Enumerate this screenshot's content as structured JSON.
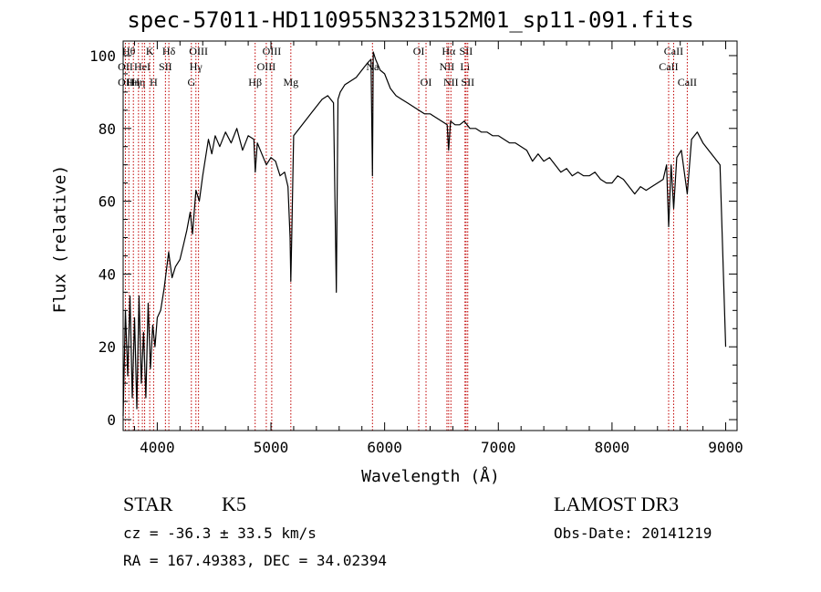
{
  "title": "spec-57011-HD110955N323152M01_sp11-091.fits",
  "info": {
    "object_class": "STAR",
    "subclass": "K5",
    "survey": "LAMOST DR3",
    "cz": "cz = -36.3 ± 33.5 km/s",
    "obs_date": "Obs-Date: 20141219",
    "coords": "RA = 167.49383, DEC =  34.02394"
  },
  "chart_data": {
    "type": "line",
    "xlabel": "Wavelength (Å)",
    "ylabel": "Flux (relative)",
    "xlim": [
      3700,
      9100
    ],
    "ylim": [
      -3,
      104
    ],
    "xticks": [
      4000,
      5000,
      6000,
      7000,
      8000,
      9000
    ],
    "yticks": [
      0,
      20,
      40,
      60,
      80,
      100
    ],
    "grid": false,
    "series": [
      {
        "x": [
          3700,
          3720,
          3740,
          3760,
          3780,
          3800,
          3820,
          3840,
          3860,
          3880,
          3900,
          3920,
          3940,
          3960,
          3980,
          4000,
          4030,
          4060,
          4080,
          4100,
          4130,
          4160,
          4200,
          4230,
          4260,
          4290,
          4310,
          4340,
          4370,
          4400,
          4420,
          4450,
          4480,
          4510,
          4550,
          4600,
          4650,
          4700,
          4750,
          4800,
          4850,
          4862,
          4880,
          4920,
          4960,
          5000,
          5040,
          5080,
          5120,
          5150,
          5168,
          5175,
          5183,
          5200,
          5250,
          5300,
          5350,
          5400,
          5450,
          5500,
          5550,
          5575,
          5590,
          5610,
          5650,
          5700,
          5750,
          5800,
          5850,
          5880,
          5893,
          5900,
          5920,
          5960,
          6000,
          6050,
          6100,
          6150,
          6200,
          6250,
          6300,
          6350,
          6400,
          6450,
          6500,
          6550,
          6563,
          6580,
          6620,
          6660,
          6700,
          6750,
          6800,
          6850,
          6900,
          6950,
          7000,
          7050,
          7100,
          7150,
          7200,
          7250,
          7300,
          7350,
          7400,
          7450,
          7500,
          7550,
          7600,
          7650,
          7700,
          7750,
          7800,
          7850,
          7900,
          7950,
          8000,
          8050,
          8100,
          8150,
          8200,
          8250,
          8300,
          8350,
          8400,
          8450,
          8480,
          8498,
          8520,
          8542,
          8570,
          8610,
          8662,
          8700,
          8750,
          8800,
          8850,
          8900,
          8950,
          9000
        ],
        "y": [
          1,
          30,
          12,
          34,
          6,
          28,
          3,
          34,
          10,
          24,
          6,
          32,
          14,
          26,
          20,
          28,
          30,
          36,
          41,
          46,
          39,
          42,
          44,
          48,
          52,
          57,
          51,
          63,
          60,
          67,
          71,
          77,
          73,
          78,
          75,
          79,
          76,
          80,
          74,
          78,
          77,
          68,
          76,
          73,
          70,
          72,
          71,
          67,
          68,
          64,
          50,
          38,
          50,
          78,
          80,
          82,
          84,
          86,
          88,
          89,
          87,
          35,
          88,
          90,
          92,
          93,
          94,
          96,
          98,
          99,
          67,
          101,
          99,
          96,
          95,
          91,
          89,
          88,
          87,
          86,
          85,
          84,
          84,
          83,
          82,
          81,
          74,
          82,
          81,
          81,
          82,
          80,
          80,
          79,
          79,
          78,
          78,
          77,
          76,
          76,
          75,
          74,
          71,
          73,
          71,
          72,
          70,
          68,
          69,
          67,
          68,
          67,
          67,
          68,
          66,
          65,
          65,
          67,
          66,
          64,
          62,
          64,
          63,
          64,
          65,
          66,
          70,
          53,
          70,
          58,
          72,
          74,
          62,
          77,
          79,
          76,
          74,
          72,
          70,
          20
        ]
      }
    ],
    "lines": [
      {
        "x": 3720,
        "labels": [
          "OII",
          "OII"
        ],
        "row": 1
      },
      {
        "x": 3750,
        "labels": [
          "Hθ"
        ],
        "row": 0
      },
      {
        "x": 3790,
        "labels": [
          "Hη"
        ],
        "row": 2
      },
      {
        "x": 3835,
        "labels": [
          "Hη"
        ],
        "row": 2
      },
      {
        "x": 3869,
        "labels": [
          "HeI"
        ],
        "row": 1
      },
      {
        "x": 3889,
        "labels": [],
        "row": 0
      },
      {
        "x": 3934,
        "labels": [
          "K"
        ],
        "row": 0
      },
      {
        "x": 3968,
        "labels": [
          "H"
        ],
        "row": 2
      },
      {
        "x": 4072,
        "labels": [
          "SII"
        ],
        "row": 1
      },
      {
        "x": 4102,
        "labels": [
          "Hδ"
        ],
        "row": 0
      },
      {
        "x": 4300,
        "labels": [
          "G"
        ],
        "row": 2
      },
      {
        "x": 4340,
        "labels": [
          "Hγ"
        ],
        "row": 1
      },
      {
        "x": 4363,
        "labels": [
          "OIII"
        ],
        "row": 0
      },
      {
        "x": 4861,
        "labels": [
          "Hβ"
        ],
        "row": 2
      },
      {
        "x": 4959,
        "labels": [
          "OIII"
        ],
        "row": 1
      },
      {
        "x": 5007,
        "labels": [
          "OIII"
        ],
        "row": 0
      },
      {
        "x": 5175,
        "labels": [
          "Mg"
        ],
        "row": 2
      },
      {
        "x": 5893,
        "labels": [
          "Na"
        ],
        "row": 1
      },
      {
        "x": 6300,
        "labels": [
          "OI"
        ],
        "row": 0
      },
      {
        "x": 6364,
        "labels": [
          "OI"
        ],
        "row": 2
      },
      {
        "x": 6548,
        "labels": [
          "NII"
        ],
        "row": 1
      },
      {
        "x": 6563,
        "labels": [
          "Hα"
        ],
        "row": 0
      },
      {
        "x": 6583,
        "labels": [
          "NII"
        ],
        "row": 2
      },
      {
        "x": 6707,
        "labels": [
          "Li"
        ],
        "row": 1
      },
      {
        "x": 6716,
        "labels": [
          "SII"
        ],
        "row": 0
      },
      {
        "x": 6731,
        "labels": [
          "SII"
        ],
        "row": 2
      },
      {
        "x": 8498,
        "labels": [
          "CaII"
        ],
        "row": 1
      },
      {
        "x": 8542,
        "labels": [
          "CaII"
        ],
        "row": 0
      },
      {
        "x": 8662,
        "labels": [
          "CaII"
        ],
        "row": 2
      }
    ],
    "colors": {
      "spectrum": "#000000",
      "line_markers": "#c00000"
    }
  }
}
